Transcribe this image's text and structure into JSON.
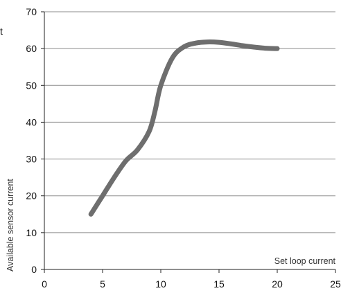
{
  "chart_data": {
    "type": "line",
    "title": "",
    "xlabel": "Set loop current",
    "ylabel": "Available sensor current",
    "fragment_label": "t",
    "xlim": [
      0,
      25
    ],
    "ylim": [
      0,
      70
    ],
    "xticks": [
      0,
      5,
      10,
      15,
      20,
      25
    ],
    "yticks": [
      0,
      10,
      20,
      30,
      40,
      50,
      60,
      70
    ],
    "grid": "horizontal",
    "legend": "none",
    "line_color": "#6e6e6e",
    "grid_color": "#8c8c8c",
    "series": [
      {
        "x": [
          4,
          5,
          6,
          7,
          8,
          9,
          9.5,
          10,
          11,
          12,
          13,
          14,
          15,
          16,
          17,
          18,
          19,
          20
        ],
        "y": [
          15,
          20,
          25,
          29.5,
          32.5,
          37.5,
          43,
          50,
          57.5,
          60.5,
          61.5,
          61.8,
          61.7,
          61.3,
          60.8,
          60.4,
          60.1,
          60
        ]
      }
    ]
  }
}
